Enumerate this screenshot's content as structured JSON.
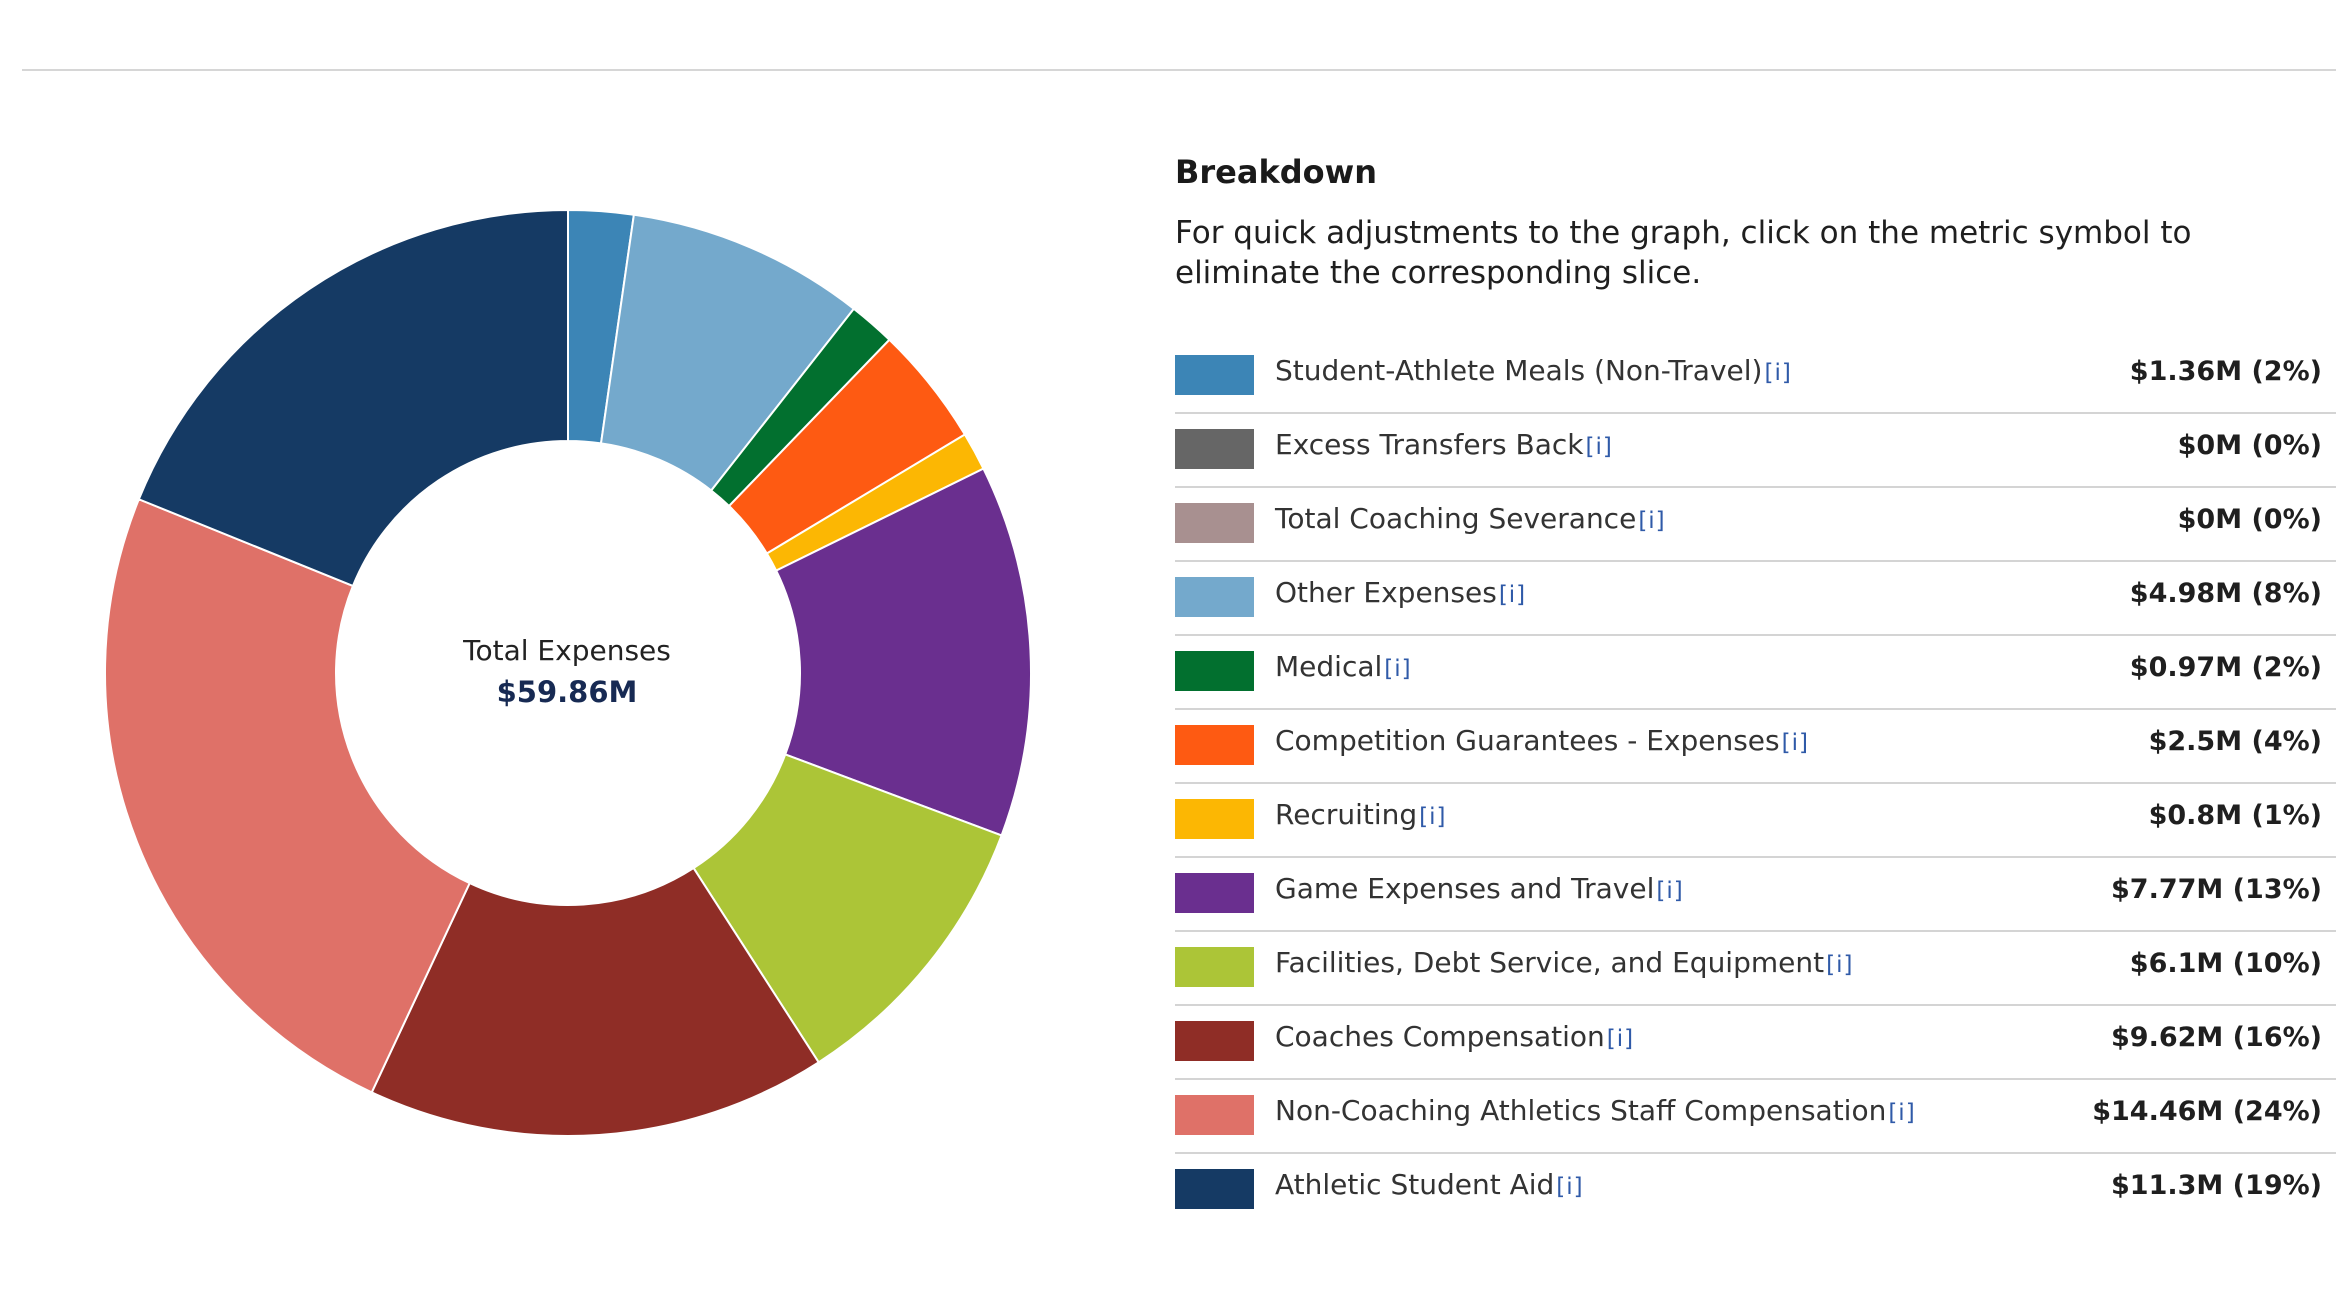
{
  "breakdown": {
    "heading": "Breakdown",
    "description": "For quick adjustments to the graph, click on the metric symbol to eliminate the corresponding slice.",
    "info_marker": "[i]"
  },
  "center": {
    "title": "Total Expenses",
    "value": "$59.86M"
  },
  "chart_data": {
    "type": "pie",
    "donut": true,
    "total": 59.86,
    "unit": "$M",
    "slices": [
      {
        "label": "Student-Athlete Meals (Non-Travel)",
        "value": 1.36,
        "display": "$1.36M (2%)",
        "color": "#3c85b6"
      },
      {
        "label": "Excess Transfers Back",
        "value": 0,
        "display": "$0M (0%)",
        "color": "#666666"
      },
      {
        "label": "Total Coaching Severance",
        "value": 0,
        "display": "$0M (0%)",
        "color": "#a89090"
      },
      {
        "label": "Other Expenses",
        "value": 4.98,
        "display": "$4.98M (8%)",
        "color": "#74a9cc"
      },
      {
        "label": "Medical",
        "value": 0.97,
        "display": "$0.97M (2%)",
        "color": "#02702f"
      },
      {
        "label": "Competition Guarantees - Expenses",
        "value": 2.5,
        "display": "$2.5M (4%)",
        "color": "#fe5a12"
      },
      {
        "label": "Recruiting",
        "value": 0.8,
        "display": "$0.8M (1%)",
        "color": "#fcb703"
      },
      {
        "label": "Game Expenses and Travel",
        "value": 7.77,
        "display": "$7.77M (13%)",
        "color": "#6a2f8f"
      },
      {
        "label": "Facilities, Debt Service, and Equipment",
        "value": 6.1,
        "display": "$6.1M (10%)",
        "color": "#acc537"
      },
      {
        "label": "Coaches Compensation",
        "value": 9.62,
        "display": "$9.62M (16%)",
        "color": "#8f2d26"
      },
      {
        "label": "Non-Coaching Athletics Staff Compensation",
        "value": 14.46,
        "display": "$14.46M (24%)",
        "color": "#df7168"
      },
      {
        "label": "Athletic Student Aid",
        "value": 11.3,
        "display": "$11.3M (19%)",
        "color": "#153a64"
      }
    ]
  }
}
